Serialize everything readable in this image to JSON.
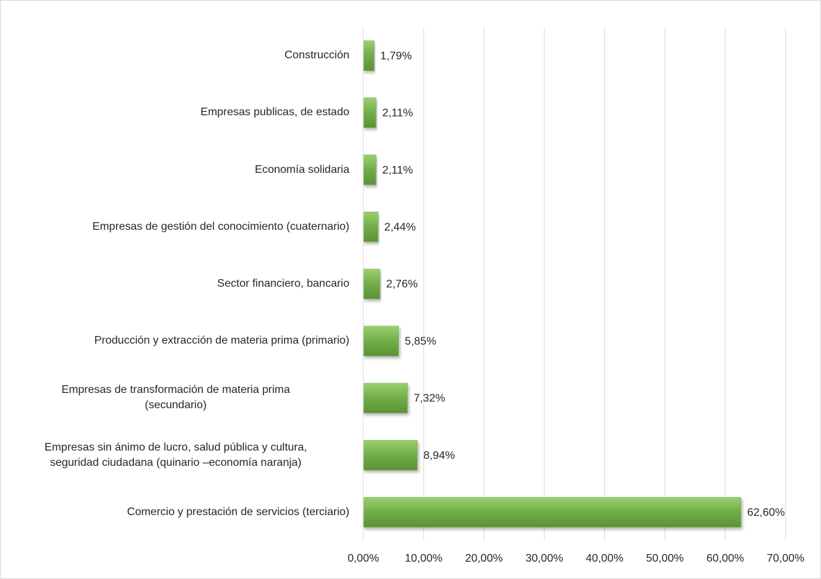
{
  "chart_data": {
    "type": "hbar",
    "categories": [
      "Construcción",
      "Empresas publicas, de estado",
      "Economía solidaria",
      "Empresas de gestión del conocimiento (cuaternario)",
      "Sector financiero, bancario",
      "Producción y extracción de materia prima (primario)",
      "Empresas de transformación de materia prima\n(secundario)",
      "Empresas sin ánimo de lucro, salud pública y cultura,\nseguridad ciudadana (quinario –economía naranja)",
      "Comercio y prestación de servicios (terciario)"
    ],
    "values": [
      1.79,
      2.11,
      2.11,
      2.44,
      2.76,
      5.85,
      7.32,
      8.94,
      62.6
    ],
    "value_labels": [
      "1,79%",
      "2,11%",
      "2,11%",
      "2,44%",
      "2,76%",
      "5,85%",
      "7,32%",
      "8,94%",
      "62,60%"
    ],
    "color": "#70ad47",
    "xlim": [
      0,
      70
    ],
    "xticks": [
      {
        "value": 0,
        "label": "0,00%"
      },
      {
        "value": 10,
        "label": "10,00%"
      },
      {
        "value": 20,
        "label": "20,00%"
      },
      {
        "value": 30,
        "label": "30,00%"
      },
      {
        "value": 40,
        "label": "40,00%"
      },
      {
        "value": 50,
        "label": "50,00%"
      },
      {
        "value": 60,
        "label": "60,00%"
      },
      {
        "value": 70,
        "label": "70,00%"
      }
    ],
    "grid": true
  }
}
